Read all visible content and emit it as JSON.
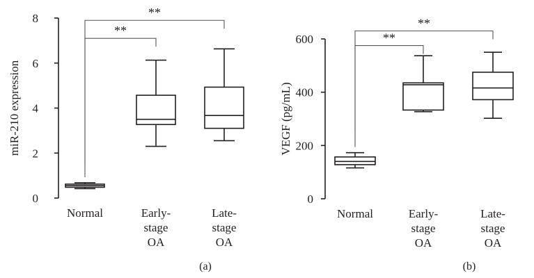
{
  "chart_data": [
    {
      "type": "box",
      "panel_label": "(a)",
      "ylabel": "miR-210 expression",
      "ylim": [
        0,
        8
      ],
      "yticks": [
        0,
        2,
        4,
        6,
        8
      ],
      "categories": [
        {
          "label": [
            "Normal"
          ]
        },
        {
          "label": [
            "Early-",
            "stage",
            "OA"
          ]
        },
        {
          "label": [
            "Late-",
            "stage",
            "OA"
          ]
        }
      ],
      "boxes": [
        {
          "min": 0.42,
          "q1": 0.48,
          "median": 0.55,
          "q3": 0.62,
          "max": 0.68
        },
        {
          "min": 2.3,
          "q1": 3.27,
          "median": 3.5,
          "q3": 4.57,
          "max": 6.13
        },
        {
          "min": 2.55,
          "q1": 3.1,
          "median": 3.67,
          "q3": 4.93,
          "max": 6.63
        }
      ],
      "significance": [
        {
          "from": 0,
          "to": 1,
          "label": "**",
          "level": 7.1
        },
        {
          "from": 0,
          "to": 2,
          "label": "**",
          "level": 7.9
        }
      ],
      "colors": {
        "stroke": "#231f20",
        "fill": "#ffffff",
        "bracket": "#555555"
      }
    },
    {
      "type": "box",
      "panel_label": "(b)",
      "ylabel": "VEGF (pg/mL)",
      "ylim": [
        0,
        600
      ],
      "yticks": [
        0,
        200,
        400,
        600
      ],
      "categories": [
        {
          "label": [
            "Normal"
          ]
        },
        {
          "label": [
            "Early-",
            "stage",
            "OA"
          ]
        },
        {
          "label": [
            "Late-",
            "stage",
            "OA"
          ]
        }
      ],
      "boxes": [
        {
          "min": 116,
          "q1": 128,
          "median": 140,
          "q3": 157,
          "max": 173
        },
        {
          "min": 327,
          "q1": 333,
          "median": 428,
          "q3": 435,
          "max": 537
        },
        {
          "min": 302,
          "q1": 372,
          "median": 416,
          "q3": 475,
          "max": 550
        }
      ],
      "significance": [
        {
          "from": 0,
          "to": 1,
          "label": "**",
          "level": 575
        },
        {
          "from": 0,
          "to": 2,
          "label": "**",
          "level": 630
        }
      ],
      "colors": {
        "stroke": "#231f20",
        "fill": "#ffffff",
        "bracket": "#555555"
      }
    }
  ]
}
